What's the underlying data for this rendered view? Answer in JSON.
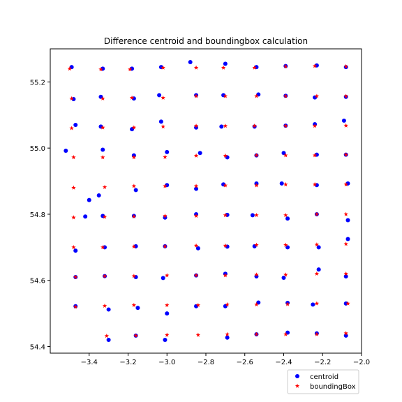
{
  "chart_data": {
    "type": "scatter",
    "title": "Difference centroid and boundingbox calculation",
    "xlabel": "",
    "ylabel": "",
    "xlim": [
      -3.6,
      -2.0
    ],
    "ylim": [
      54.38,
      55.3
    ],
    "xticks": [
      -3.4,
      -3.2,
      -3.0,
      -2.8,
      -2.6,
      -2.4,
      -2.2,
      -2.0
    ],
    "xtick_labels": [
      "−3.4",
      "−3.2",
      "−3.0",
      "−2.8",
      "−2.6",
      "−2.4",
      "−2.2",
      "−2.0"
    ],
    "yticks": [
      54.4,
      54.6,
      54.8,
      55.0,
      55.2
    ],
    "ytick_labels": [
      "54.4",
      "54.6",
      "54.8",
      "55.0",
      "55.2"
    ],
    "grid": false,
    "legend_position": "bottom-right-outside",
    "series": [
      {
        "name": "centroid",
        "color": "#0000ff",
        "marker": "circle",
        "points": [
          [
            -3.49,
            55.245
          ],
          [
            -3.33,
            55.24
          ],
          [
            -3.18,
            55.24
          ],
          [
            -3.03,
            55.245
          ],
          [
            -2.88,
            55.26
          ],
          [
            -2.7,
            55.255
          ],
          [
            -2.54,
            55.245
          ],
          [
            -2.39,
            55.248
          ],
          [
            -2.23,
            55.25
          ],
          [
            -2.08,
            55.245
          ],
          [
            -3.48,
            55.148
          ],
          [
            -3.34,
            55.155
          ],
          [
            -3.17,
            55.15
          ],
          [
            -3.04,
            55.16
          ],
          [
            -2.85,
            55.16
          ],
          [
            -2.71,
            55.16
          ],
          [
            -2.53,
            55.162
          ],
          [
            -2.39,
            55.158
          ],
          [
            -2.24,
            55.153
          ],
          [
            -2.08,
            55.155
          ],
          [
            -3.47,
            55.07
          ],
          [
            -3.34,
            55.065
          ],
          [
            -3.18,
            55.057
          ],
          [
            -3.03,
            55.08
          ],
          [
            -2.85,
            55.062
          ],
          [
            -2.72,
            55.065
          ],
          [
            -2.55,
            55.065
          ],
          [
            -2.39,
            55.068
          ],
          [
            -2.24,
            55.072
          ],
          [
            -2.09,
            55.083
          ],
          [
            -3.52,
            54.992
          ],
          [
            -3.33,
            54.995
          ],
          [
            -3.17,
            54.978
          ],
          [
            -3.0,
            54.988
          ],
          [
            -2.83,
            54.985
          ],
          [
            -2.69,
            54.972
          ],
          [
            -2.54,
            54.978
          ],
          [
            -2.4,
            54.985
          ],
          [
            -2.23,
            54.98
          ],
          [
            -2.08,
            54.98
          ],
          [
            -3.35,
            54.857
          ],
          [
            -3.4,
            54.843
          ],
          [
            -3.16,
            54.873
          ],
          [
            -3.0,
            54.888
          ],
          [
            -2.85,
            54.877
          ],
          [
            -2.71,
            54.89
          ],
          [
            -2.54,
            54.893
          ],
          [
            -2.41,
            54.893
          ],
          [
            -2.23,
            54.888
          ],
          [
            -2.07,
            54.893
          ],
          [
            -3.42,
            54.793
          ],
          [
            -3.33,
            54.795
          ],
          [
            -3.17,
            54.795
          ],
          [
            -3.01,
            54.79
          ],
          [
            -2.85,
            54.8
          ],
          [
            -2.69,
            54.798
          ],
          [
            -2.56,
            54.797
          ],
          [
            -2.38,
            54.787
          ],
          [
            -2.23,
            54.8
          ],
          [
            -2.07,
            54.782
          ],
          [
            -3.47,
            54.69
          ],
          [
            -3.32,
            54.7
          ],
          [
            -3.16,
            54.703
          ],
          [
            -3.01,
            54.703
          ],
          [
            -2.84,
            54.697
          ],
          [
            -2.69,
            54.702
          ],
          [
            -2.55,
            54.703
          ],
          [
            -2.38,
            54.7
          ],
          [
            -2.22,
            54.7
          ],
          [
            -2.07,
            54.725
          ],
          [
            -3.47,
            54.61
          ],
          [
            -3.32,
            54.613
          ],
          [
            -3.16,
            54.61
          ],
          [
            -3.02,
            54.607
          ],
          [
            -2.85,
            54.615
          ],
          [
            -2.7,
            54.62
          ],
          [
            -2.54,
            54.612
          ],
          [
            -2.4,
            54.608
          ],
          [
            -2.22,
            54.633
          ],
          [
            -2.08,
            54.612
          ],
          [
            -3.47,
            54.522
          ],
          [
            -3.3,
            54.512
          ],
          [
            -3.15,
            54.517
          ],
          [
            -3.0,
            54.5
          ],
          [
            -2.85,
            54.522
          ],
          [
            -2.7,
            54.522
          ],
          [
            -2.53,
            54.533
          ],
          [
            -2.38,
            54.532
          ],
          [
            -2.25,
            54.527
          ],
          [
            -2.08,
            54.53
          ],
          [
            -3.3,
            54.42
          ],
          [
            -3.16,
            54.433
          ],
          [
            -3.01,
            54.42
          ],
          [
            -2.69,
            54.427
          ],
          [
            -2.54,
            54.437
          ],
          [
            -2.38,
            54.442
          ],
          [
            -2.23,
            54.44
          ],
          [
            -2.08,
            54.433
          ]
        ]
      },
      {
        "name": "boundingBox",
        "color": "#ff0000",
        "marker": "star",
        "points": [
          [
            -3.5,
            55.24
          ],
          [
            -3.34,
            55.238
          ],
          [
            -3.19,
            55.238
          ],
          [
            -3.02,
            55.243
          ],
          [
            -2.85,
            55.243
          ],
          [
            -2.71,
            55.243
          ],
          [
            -2.55,
            55.243
          ],
          [
            -2.39,
            55.247
          ],
          [
            -2.24,
            55.248
          ],
          [
            -2.08,
            55.247
          ],
          [
            -3.49,
            55.15
          ],
          [
            -3.33,
            55.15
          ],
          [
            -3.18,
            55.152
          ],
          [
            -3.02,
            55.152
          ],
          [
            -2.85,
            55.157
          ],
          [
            -2.7,
            55.157
          ],
          [
            -2.54,
            55.157
          ],
          [
            -2.39,
            55.157
          ],
          [
            -2.23,
            55.157
          ],
          [
            -2.08,
            55.157
          ],
          [
            -3.49,
            55.06
          ],
          [
            -3.33,
            55.062
          ],
          [
            -3.17,
            55.062
          ],
          [
            -3.02,
            55.065
          ],
          [
            -2.85,
            55.067
          ],
          [
            -2.7,
            55.067
          ],
          [
            -2.55,
            55.067
          ],
          [
            -2.39,
            55.067
          ],
          [
            -2.24,
            55.067
          ],
          [
            -2.08,
            55.068
          ],
          [
            -3.48,
            54.972
          ],
          [
            -3.33,
            54.972
          ],
          [
            -3.17,
            54.972
          ],
          [
            -3.01,
            54.973
          ],
          [
            -2.85,
            54.977
          ],
          [
            -2.7,
            54.977
          ],
          [
            -2.54,
            54.978
          ],
          [
            -2.39,
            54.978
          ],
          [
            -2.24,
            54.978
          ],
          [
            -2.08,
            54.98
          ],
          [
            -3.48,
            54.88
          ],
          [
            -3.32,
            54.882
          ],
          [
            -3.17,
            54.885
          ],
          [
            -3.01,
            54.885
          ],
          [
            -2.85,
            54.885
          ],
          [
            -2.7,
            54.887
          ],
          [
            -2.54,
            54.887
          ],
          [
            -2.39,
            54.89
          ],
          [
            -2.24,
            54.89
          ],
          [
            -2.08,
            54.89
          ],
          [
            -3.48,
            54.79
          ],
          [
            -3.32,
            54.792
          ],
          [
            -3.17,
            54.793
          ],
          [
            -3.01,
            54.795
          ],
          [
            -2.85,
            54.795
          ],
          [
            -2.7,
            54.797
          ],
          [
            -2.54,
            54.797
          ],
          [
            -2.39,
            54.797
          ],
          [
            -2.23,
            54.8
          ],
          [
            -2.08,
            54.8
          ],
          [
            -3.48,
            54.7
          ],
          [
            -3.33,
            54.7
          ],
          [
            -3.17,
            54.702
          ],
          [
            -3.01,
            54.703
          ],
          [
            -2.85,
            54.705
          ],
          [
            -2.7,
            54.705
          ],
          [
            -2.54,
            54.707
          ],
          [
            -2.39,
            54.707
          ],
          [
            -2.23,
            54.708
          ],
          [
            -2.08,
            54.71
          ],
          [
            -3.47,
            54.61
          ],
          [
            -3.32,
            54.613
          ],
          [
            -3.17,
            54.613
          ],
          [
            -3.0,
            54.615
          ],
          [
            -2.85,
            54.615
          ],
          [
            -2.7,
            54.615
          ],
          [
            -2.54,
            54.617
          ],
          [
            -2.39,
            54.617
          ],
          [
            -2.23,
            54.62
          ],
          [
            -2.08,
            54.62
          ],
          [
            -3.47,
            54.52
          ],
          [
            -3.32,
            54.523
          ],
          [
            -3.17,
            54.525
          ],
          [
            -3.0,
            54.525
          ],
          [
            -2.84,
            54.525
          ],
          [
            -2.69,
            54.527
          ],
          [
            -2.54,
            54.527
          ],
          [
            -2.38,
            54.528
          ],
          [
            -2.23,
            54.53
          ],
          [
            -2.07,
            54.53
          ],
          [
            -3.31,
            54.432
          ],
          [
            -3.16,
            54.433
          ],
          [
            -3.0,
            54.435
          ],
          [
            -2.84,
            54.435
          ],
          [
            -2.69,
            54.437
          ],
          [
            -2.54,
            54.437
          ],
          [
            -2.39,
            54.437
          ],
          [
            -2.23,
            54.437
          ],
          [
            -2.08,
            54.44
          ]
        ]
      }
    ]
  }
}
